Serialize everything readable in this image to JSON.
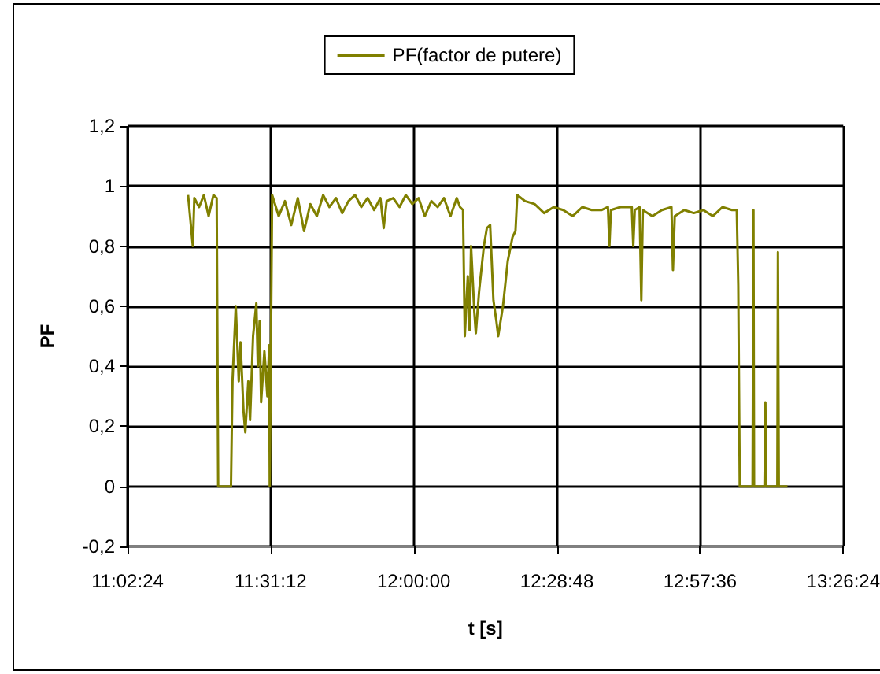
{
  "chart_data": {
    "type": "line",
    "xlabel": "t [s]",
    "ylabel": "PF",
    "legend": "top",
    "grid": true,
    "marker": "none",
    "line_style": "solid",
    "xlim": [
      11.04,
      13.44
    ],
    "xticks": [
      {
        "value": 11.04,
        "label": "11:02:24"
      },
      {
        "value": 11.52,
        "label": "11:31:12"
      },
      {
        "value": 12.0,
        "label": "12:00:00"
      },
      {
        "value": 12.48,
        "label": "12:28:48"
      },
      {
        "value": 12.96,
        "label": "12:57:36"
      },
      {
        "value": 13.44,
        "label": "13:26:24"
      }
    ],
    "ylim": [
      -0.2,
      1.2
    ],
    "yticks": [
      {
        "value": -0.2,
        "label": "-0,2"
      },
      {
        "value": 0,
        "label": "0"
      },
      {
        "value": 0.2,
        "label": "0,2"
      },
      {
        "value": 0.4,
        "label": "0,4"
      },
      {
        "value": 0.6,
        "label": "0,6"
      },
      {
        "value": 0.8,
        "label": "0,8"
      },
      {
        "value": 1,
        "label": "1"
      },
      {
        "value": 1.2,
        "label": "1,2"
      }
    ],
    "series": [
      {
        "name": "PF(factor de putere)",
        "color": "#808000",
        "x": [
          11.243,
          11.259,
          11.264,
          11.28,
          11.296,
          11.312,
          11.328,
          11.339,
          11.344,
          11.387,
          11.392,
          11.403,
          11.413,
          11.419,
          11.429,
          11.435,
          11.445,
          11.451,
          11.461,
          11.472,
          11.477,
          11.483,
          11.488,
          11.499,
          11.509,
          11.515,
          11.517,
          11.525,
          11.547,
          11.568,
          11.589,
          11.611,
          11.632,
          11.653,
          11.675,
          11.696,
          11.717,
          11.739,
          11.76,
          11.781,
          11.803,
          11.824,
          11.845,
          11.867,
          11.888,
          11.899,
          11.909,
          11.931,
          11.952,
          11.973,
          11.995,
          12.016,
          12.037,
          12.059,
          12.08,
          12.101,
          12.123,
          12.144,
          12.155,
          12.165,
          12.171,
          12.181,
          12.187,
          12.192,
          12.203,
          12.208,
          12.219,
          12.235,
          12.245,
          12.256,
          12.267,
          12.277,
          12.283,
          12.299,
          12.315,
          12.331,
          12.341,
          12.347,
          12.373,
          12.405,
          12.437,
          12.469,
          12.501,
          12.533,
          12.565,
          12.597,
          12.629,
          12.651,
          12.656,
          12.661,
          12.693,
          12.731,
          12.736,
          12.741,
          12.757,
          12.763,
          12.768,
          12.8,
          12.832,
          12.864,
          12.869,
          12.875,
          12.907,
          12.939,
          12.971,
          13.003,
          13.035,
          13.067,
          13.083,
          13.088,
          13.093,
          13.136,
          13.139,
          13.141,
          13.176,
          13.179,
          13.181,
          13.219,
          13.221,
          13.224,
          13.253
        ],
        "values": [
          0.97,
          0.8,
          0.96,
          0.93,
          0.97,
          0.9,
          0.97,
          0.96,
          0,
          0,
          0.35,
          0.6,
          0.35,
          0.48,
          0.25,
          0.18,
          0.35,
          0.22,
          0.5,
          0.61,
          0.4,
          0.55,
          0.28,
          0.45,
          0.3,
          0.47,
          0,
          0.97,
          0.9,
          0.95,
          0.87,
          0.96,
          0.85,
          0.94,
          0.9,
          0.97,
          0.93,
          0.96,
          0.91,
          0.95,
          0.97,
          0.93,
          0.96,
          0.92,
          0.96,
          0.86,
          0.95,
          0.96,
          0.93,
          0.97,
          0.94,
          0.96,
          0.9,
          0.95,
          0.93,
          0.96,
          0.9,
          0.96,
          0.93,
          0.92,
          0.5,
          0.7,
          0.52,
          0.8,
          0.58,
          0.51,
          0.65,
          0.8,
          0.86,
          0.87,
          0.62,
          0.55,
          0.5,
          0.6,
          0.75,
          0.83,
          0.85,
          0.97,
          0.95,
          0.94,
          0.91,
          0.93,
          0.92,
          0.9,
          0.93,
          0.92,
          0.92,
          0.93,
          0.8,
          0.92,
          0.93,
          0.93,
          0.8,
          0.92,
          0.93,
          0.62,
          0.92,
          0.9,
          0.92,
          0.93,
          0.72,
          0.9,
          0.92,
          0.91,
          0.92,
          0.9,
          0.93,
          0.92,
          0.92,
          0.67,
          0,
          0,
          0.92,
          0,
          0,
          0.28,
          0,
          0,
          0.78,
          0,
          0
        ]
      }
    ]
  }
}
